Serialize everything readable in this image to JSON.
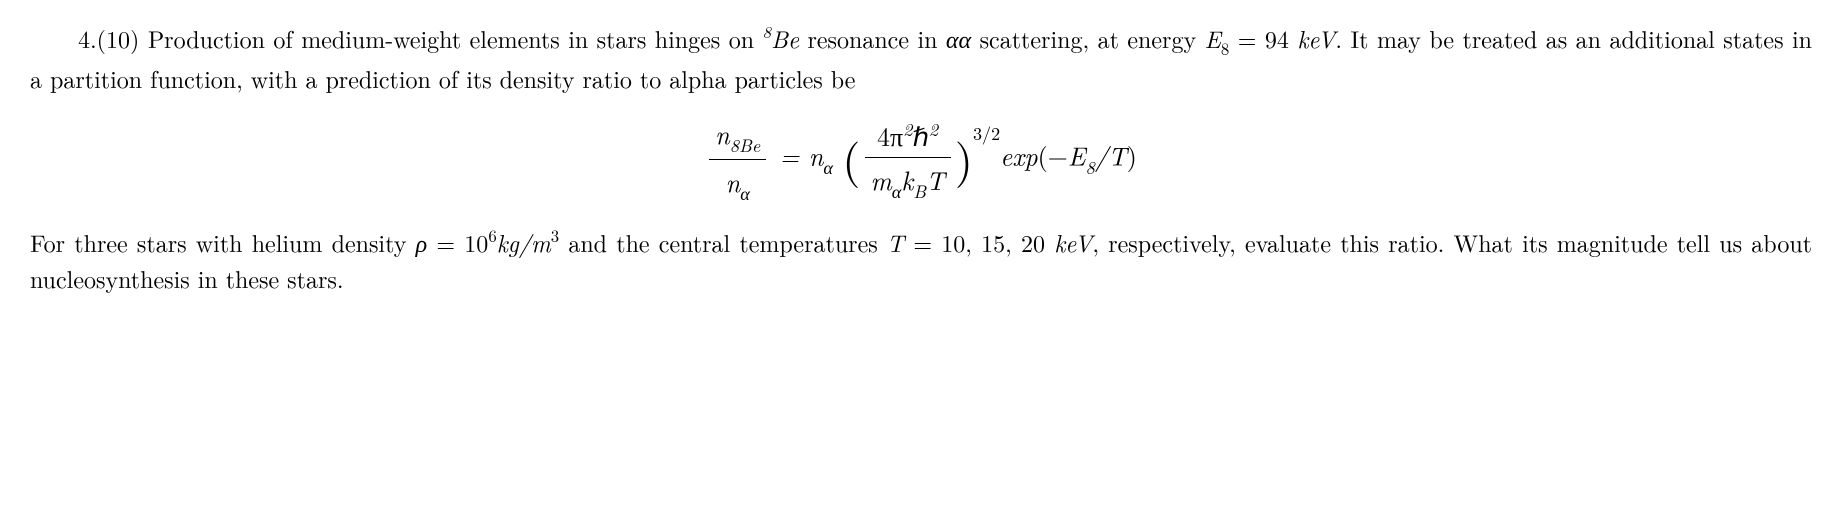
{
  "problem": {
    "number": "4.(10)",
    "text1_part1": "Production of medium-weight elements in stars hinges on ",
    "be_isotope_sup": "8",
    "be_isotope": "Be",
    "text1_part2": " resonance in ",
    "alpha_alpha": "αα",
    "text2_part1": "scattering, at energy ",
    "energy_var": "E",
    "energy_sub": "8",
    "energy_eq": " = 94 ",
    "energy_unit": "keV",
    "text2_part2": ". It may be treated as an additional states in a partition function, with a prediction of its density ratio to alpha particles be",
    "equation": {
      "lhs_num_n": "n",
      "lhs_num_sub": "8Be",
      "lhs_den_n": "n",
      "lhs_den_sub": "α",
      "eq": " = ",
      "rhs_n": "n",
      "rhs_n_sub": "α",
      "frac_num_4pi": "4π",
      "frac_num_pi_sup": "2",
      "frac_num_hbar": "ℏ",
      "frac_num_hbar_sup": "2",
      "frac_den_m": "m",
      "frac_den_m_sub": "α",
      "frac_den_k": "k",
      "frac_den_k_sub": "B",
      "frac_den_T": "T",
      "power": "3/2",
      "exp_text": "exp",
      "exp_arg_open": "(−",
      "exp_arg_E": "E",
      "exp_arg_E_sub": "8",
      "exp_arg_slash": "/T",
      "exp_arg_close": ")"
    },
    "text3_part1": "For three stars with helium density ",
    "rho": "ρ",
    "rho_eq": " = 10",
    "rho_sup": "6",
    "rho_unit1": "kg/m",
    "rho_unit_sup": "3",
    "text3_part2": " and the central temperatures ",
    "T_var": "T",
    "T_eq": " = 10, 15, 20 ",
    "T_unit": "keV",
    "text3_part3": ", respectively, evaluate this ratio. What its magnitude tell us about nucleosynthesis in these stars."
  }
}
